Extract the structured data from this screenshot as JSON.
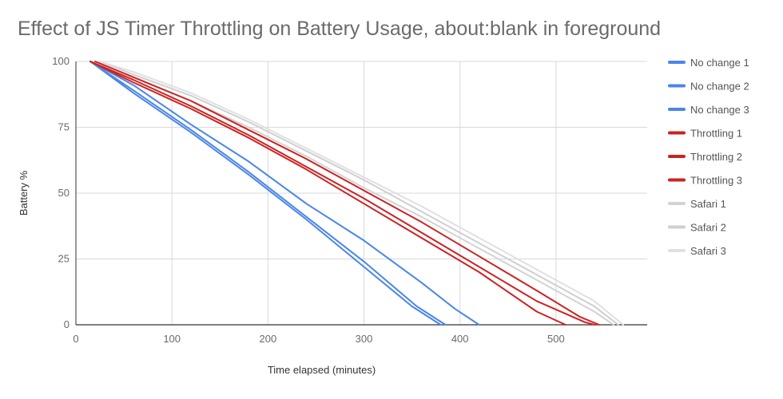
{
  "chart_data": {
    "type": "line",
    "title": "Effect of JS Timer Throttling on Battery Usage, about:blank in foreground",
    "xlabel": "Time elapsed (minutes)",
    "ylabel": "Battery %",
    "xlim": [
      0,
      595
    ],
    "ylim": [
      0,
      100
    ],
    "x_ticks": [
      0,
      100,
      200,
      300,
      400,
      500
    ],
    "y_ticks": [
      0,
      25,
      50,
      75,
      100
    ],
    "grid": true,
    "legend_position": "right",
    "series": [
      {
        "name": "No change 1",
        "color": "#4a86e8",
        "points": [
          [
            15,
            100
          ],
          [
            60,
            88
          ],
          [
            120,
            73
          ],
          [
            180,
            57
          ],
          [
            240,
            40
          ],
          [
            300,
            22
          ],
          [
            350,
            7
          ],
          [
            380,
            0
          ]
        ]
      },
      {
        "name": "No change 2",
        "color": "#4a86e8",
        "points": [
          [
            15,
            100
          ],
          [
            60,
            89
          ],
          [
            120,
            74
          ],
          [
            180,
            58
          ],
          [
            240,
            41
          ],
          [
            300,
            24
          ],
          [
            355,
            7
          ],
          [
            385,
            0
          ]
        ]
      },
      {
        "name": "No change 3",
        "color": "#4a86e8",
        "points": [
          [
            15,
            100
          ],
          [
            60,
            91
          ],
          [
            120,
            76
          ],
          [
            180,
            62
          ],
          [
            240,
            46
          ],
          [
            300,
            32
          ],
          [
            360,
            16
          ],
          [
            395,
            6
          ],
          [
            420,
            0
          ]
        ]
      },
      {
        "name": "Throttling 1",
        "color": "#cc2222",
        "points": [
          [
            15,
            100
          ],
          [
            60,
            92
          ],
          [
            120,
            82
          ],
          [
            180,
            71
          ],
          [
            240,
            59
          ],
          [
            300,
            46
          ],
          [
            360,
            33
          ],
          [
            420,
            20
          ],
          [
            480,
            5
          ],
          [
            510,
            0
          ]
        ]
      },
      {
        "name": "Throttling 2",
        "color": "#cc2222",
        "points": [
          [
            15,
            100
          ],
          [
            60,
            93
          ],
          [
            120,
            83
          ],
          [
            180,
            72
          ],
          [
            240,
            60
          ],
          [
            300,
            48
          ],
          [
            360,
            35
          ],
          [
            420,
            22
          ],
          [
            480,
            9
          ],
          [
            530,
            1
          ],
          [
            540,
            0
          ]
        ]
      },
      {
        "name": "Throttling 3",
        "color": "#cc2222",
        "points": [
          [
            20,
            100
          ],
          [
            60,
            94
          ],
          [
            120,
            85
          ],
          [
            180,
            74
          ],
          [
            240,
            63
          ],
          [
            300,
            51
          ],
          [
            360,
            39
          ],
          [
            420,
            26
          ],
          [
            480,
            13
          ],
          [
            525,
            3
          ],
          [
            545,
            0
          ]
        ]
      },
      {
        "name": "Safari 1",
        "color": "#d3d3d3",
        "points": [
          [
            20,
            100
          ],
          [
            60,
            94
          ],
          [
            120,
            85
          ],
          [
            180,
            75
          ],
          [
            240,
            64
          ],
          [
            300,
            52
          ],
          [
            360,
            41
          ],
          [
            420,
            29
          ],
          [
            480,
            17
          ],
          [
            540,
            5
          ],
          [
            560,
            0
          ]
        ]
      },
      {
        "name": "Safari 2",
        "color": "#cfcfcf",
        "points": [
          [
            25,
            100
          ],
          [
            60,
            95
          ],
          [
            120,
            87
          ],
          [
            180,
            77
          ],
          [
            240,
            66
          ],
          [
            300,
            55
          ],
          [
            360,
            43
          ],
          [
            420,
            31
          ],
          [
            480,
            19
          ],
          [
            540,
            7
          ],
          [
            565,
            0
          ]
        ]
      },
      {
        "name": "Safari 3",
        "color": "#e0e0e0",
        "points": [
          [
            25,
            100
          ],
          [
            60,
            96
          ],
          [
            120,
            88
          ],
          [
            180,
            78
          ],
          [
            240,
            67
          ],
          [
            300,
            56
          ],
          [
            360,
            45
          ],
          [
            420,
            33
          ],
          [
            480,
            21
          ],
          [
            540,
            9
          ],
          [
            570,
            0
          ]
        ]
      }
    ]
  }
}
